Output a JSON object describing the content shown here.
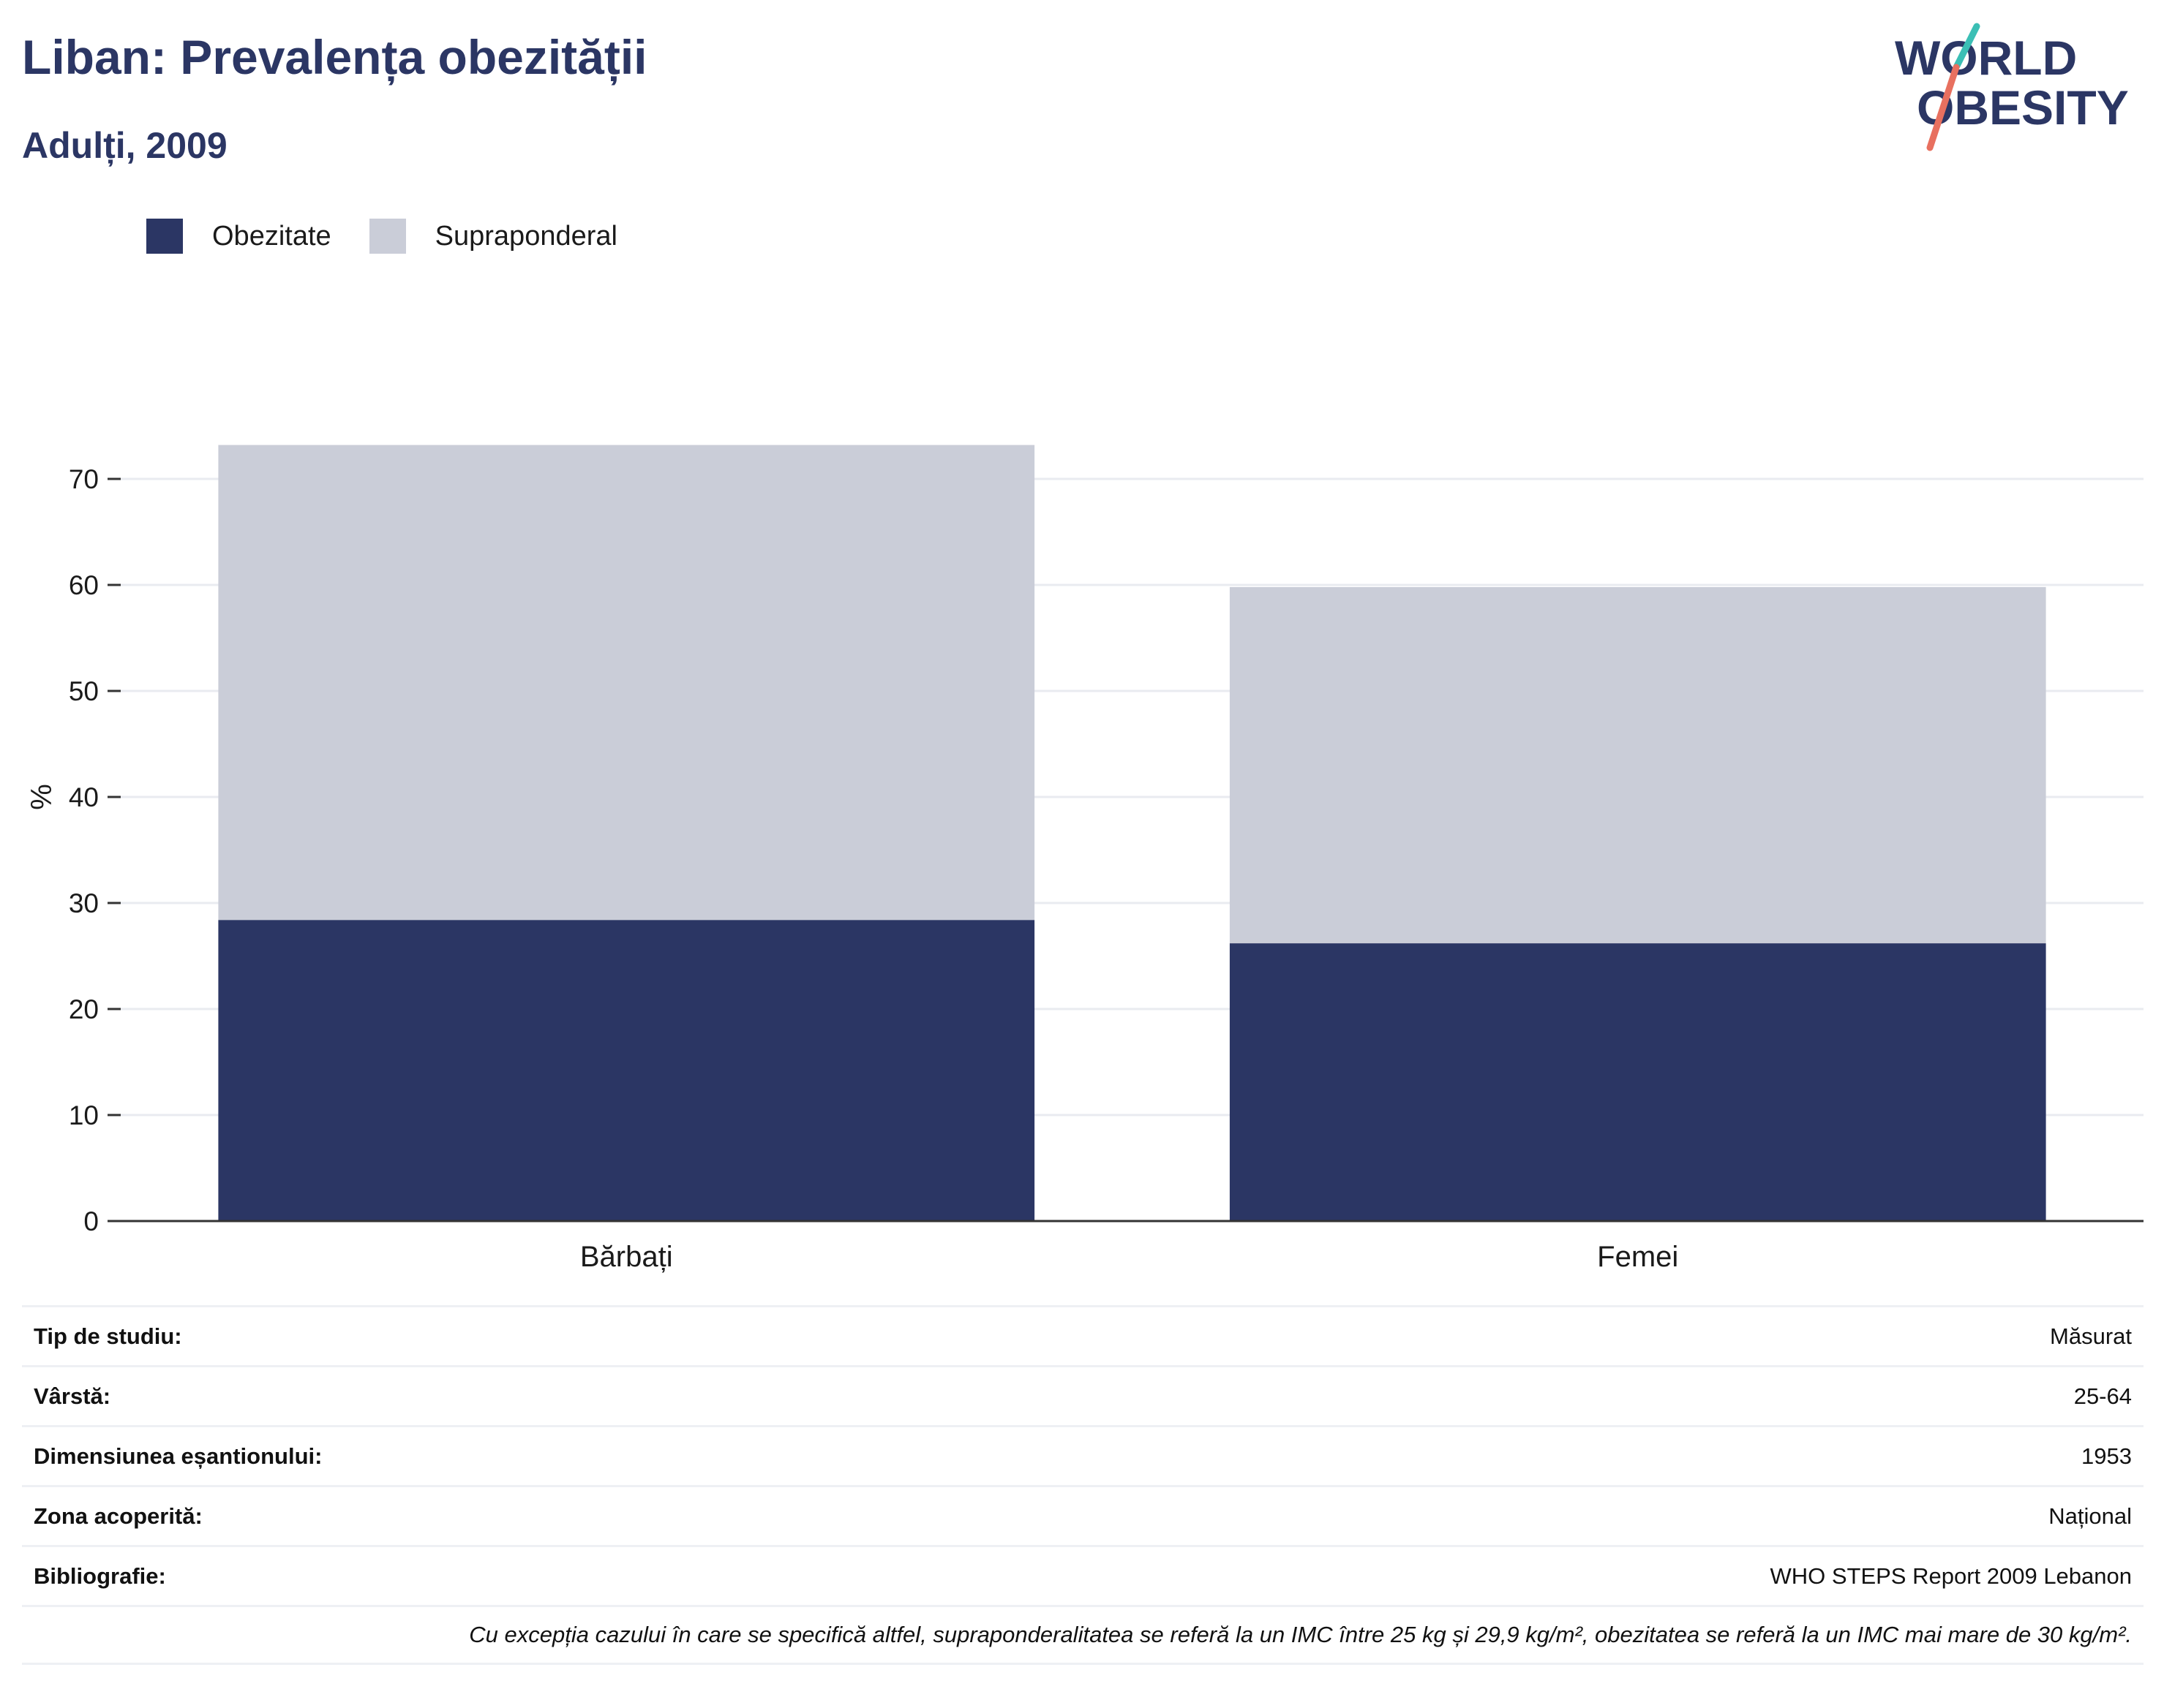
{
  "title": "Liban: Prevalența obezității",
  "subtitle": "Adulți, 2009",
  "logo": {
    "line1": "WORLD",
    "line2": "OBESITY"
  },
  "colors": {
    "obesity": "#2b3664",
    "overweight": "#cacdd8",
    "accent_teal": "#3bbfb5",
    "accent_red": "#e8705f",
    "grid": "#e9ebf0",
    "axis": "#333333"
  },
  "chart_data": {
    "type": "bar",
    "stacked": true,
    "categories": [
      "Bărbați",
      "Femei"
    ],
    "series": [
      {
        "name": "Obezitate",
        "values": [
          28.4,
          26.2
        ],
        "color": "#2b3664"
      },
      {
        "name": "Supraponderal",
        "values": [
          44.8,
          33.6
        ],
        "color": "#cacdd8"
      }
    ],
    "ylabel": "%",
    "ylim": [
      0,
      80
    ],
    "yticks": [
      0,
      10,
      20,
      30,
      40,
      50,
      60,
      70
    ],
    "legend": "top-left",
    "grid": true
  },
  "info": [
    {
      "key": "Tip de studiu:",
      "value": "Măsurat"
    },
    {
      "key": "Vârstă:",
      "value": "25-64"
    },
    {
      "key": "Dimensiunea eșantionului:",
      "value": "1953"
    },
    {
      "key": "Zona acoperită:",
      "value": "Național"
    },
    {
      "key": "Bibliografie:",
      "value": "WHO STEPS Report 2009 Lebanon"
    }
  ],
  "note": "Cu excepția cazului în care se specifică altfel, supraponderalitatea se referă la un IMC între 25 kg și 29,9 kg/m², obezitatea se referă la un IMC mai mare de 30 kg/m²."
}
